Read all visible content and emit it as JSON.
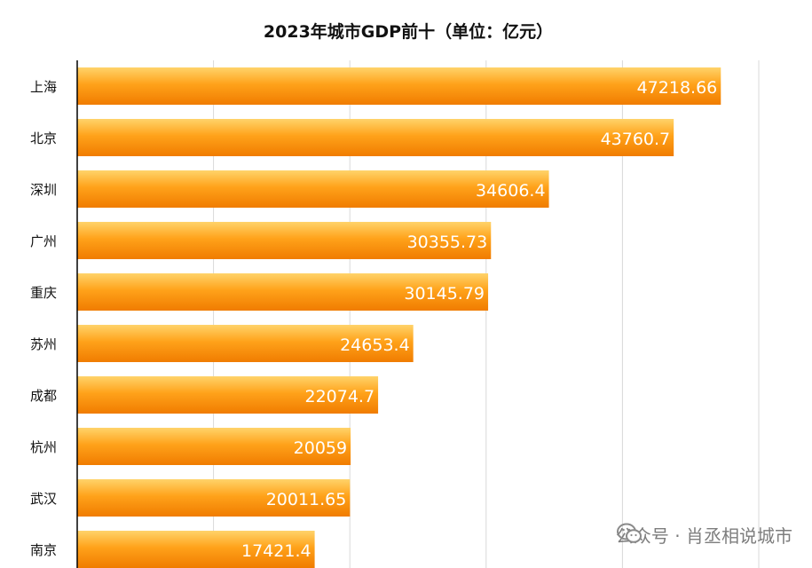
{
  "chart_data": {
    "type": "bar",
    "orientation": "horizontal",
    "title": "2023年城市GDP前十（单位：亿元）",
    "categories": [
      "上海",
      "北京",
      "深圳",
      "广州",
      "重庆",
      "苏州",
      "成都",
      "杭州",
      "武汉",
      "南京"
    ],
    "values": [
      47218.66,
      43760.7,
      34606.4,
      30355.73,
      30145.79,
      24653.4,
      22074.7,
      20059,
      20011.65,
      17421.4
    ],
    "value_labels": [
      "47218.66",
      "43760.7",
      "34606.4",
      "30355.73",
      "30145.79",
      "24653.4",
      "22074.7",
      "20059",
      "20011.65",
      "17421.4"
    ],
    "xlabel": "",
    "ylabel": "",
    "xlim": [
      0,
      50000
    ],
    "grid": true,
    "legend": "none"
  },
  "colors": {
    "bar_top": "#ffd36a",
    "bar_mid": "#ffa21a",
    "bar_bottom": "#f07c00",
    "label": "#ffffff",
    "grid": "#d9d9d9",
    "axis": "#000000",
    "text": "#111111"
  },
  "watermark": {
    "icon": "wechat-icon",
    "text": "公众号 · 肖丞相说城市"
  }
}
